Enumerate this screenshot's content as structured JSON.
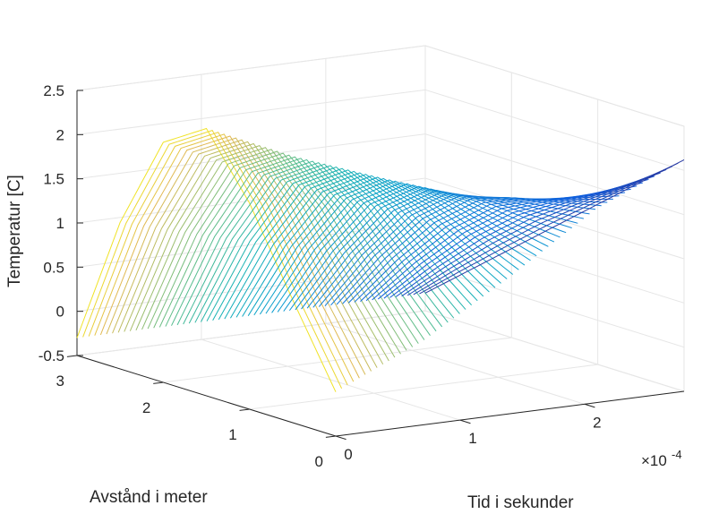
{
  "chart_data": {
    "type": "mesh",
    "title": "",
    "xlabel": "Tid i sekunder",
    "ylabel": "Avstånd i meter",
    "zlabel": "Temperatur [C]",
    "x_exponent_label": "×10",
    "x_exponent_power": "-4",
    "xlim": [
      0,
      0.00028
    ],
    "ylim": [
      0,
      3
    ],
    "zlim": [
      -0.5,
      2.5
    ],
    "x_ticks": [
      {
        "value": 0,
        "label": "0"
      },
      {
        "value": 0.0001,
        "label": "1"
      },
      {
        "value": 0.0002,
        "label": "2"
      }
    ],
    "y_ticks": [
      {
        "value": 0,
        "label": "0"
      },
      {
        "value": 1,
        "label": "1"
      },
      {
        "value": 2,
        "label": "2"
      },
      {
        "value": 3,
        "label": "3"
      }
    ],
    "z_ticks": [
      {
        "value": -0.5,
        "label": "-0.5"
      },
      {
        "value": 0,
        "label": "0"
      },
      {
        "value": 0.5,
        "label": "0.5"
      },
      {
        "value": 1,
        "label": "1"
      },
      {
        "value": 1.5,
        "label": "1.5"
      },
      {
        "value": 2,
        "label": "2"
      },
      {
        "value": 2.5,
        "label": "2.5"
      }
    ],
    "grid": true,
    "colormap": "parula",
    "curve_count": 60,
    "surface": {
      "description_of_values": "T(x,t) boundary profiles",
      "t_at_x0": {
        "t": [
          0,
          7e-05,
          0.00014,
          0.00021,
          0.00028
        ],
        "T": [
          0,
          0.45,
          1.05,
          1.7,
          2.12
        ]
      },
      "t_at_x3": {
        "t": [
          0,
          0.00028
        ],
        "T": [
          -0.3,
          -0.3
        ]
      },
      "peak_at_t0": {
        "x": [
          0,
          0.5,
          1.0,
          1.5,
          2.0,
          2.5,
          3.0
        ],
        "T": [
          -0.35,
          0.6,
          1.6,
          2.35,
          2.1,
          1.1,
          -0.3
        ]
      }
    }
  }
}
